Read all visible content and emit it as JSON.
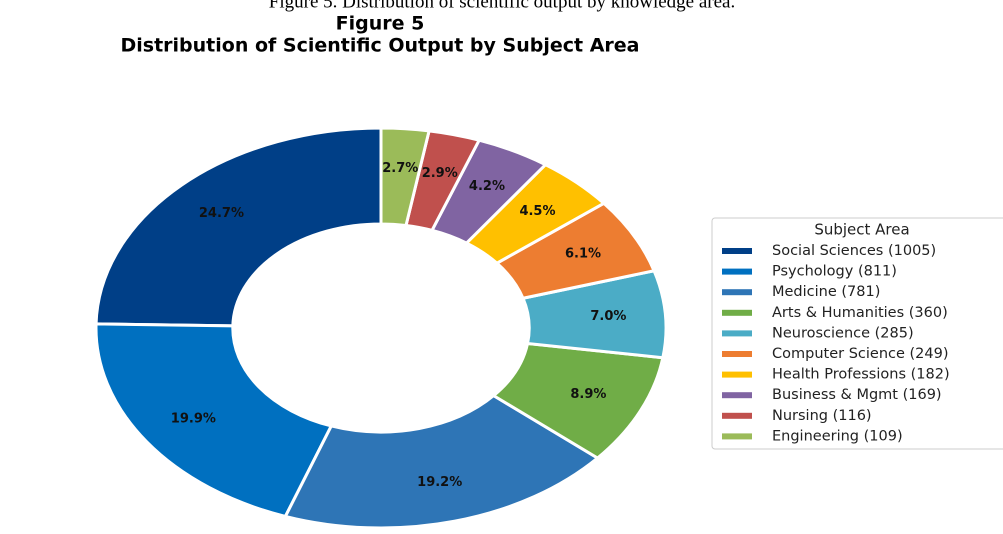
{
  "chart_data": {
    "type": "donut",
    "caption": "Figure 5. Distribution of scientific output by knowledge area.",
    "title": "Figure 5",
    "subtitle": "Distribution of Scientific Output by Subject Area",
    "legend_title": "Subject Area",
    "legend_position": "right",
    "categories": [
      "Social Sciences (1005)",
      "Psychology (811)",
      "Medicine (781)",
      "Arts & Humanities (360)",
      "Neuroscience (285)",
      "Computer Science (249)",
      "Health Professions (182)",
      "Business & Mgmt (169)",
      "Nursing (116)",
      "Engineering (109)"
    ],
    "values": [
      24.7,
      19.9,
      19.2,
      8.9,
      7.0,
      6.1,
      4.5,
      4.2,
      2.9,
      2.7
    ],
    "value_labels": [
      "24.7%",
      "19.9%",
      "19.2%",
      "8.9%",
      "7.0%",
      "6.1%",
      "4.5%",
      "4.2%",
      "2.9%",
      "2.7%"
    ],
    "colors": [
      "#003f87",
      "#0070c0",
      "#2e75b6",
      "#70ad47",
      "#4bacc6",
      "#ed7d31",
      "#ffc000",
      "#8064a2",
      "#c0504d",
      "#9bbb59"
    ]
  }
}
